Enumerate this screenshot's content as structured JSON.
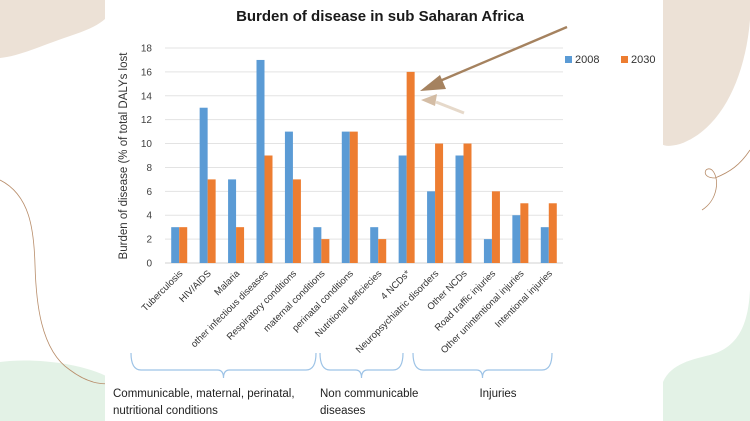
{
  "colors": {
    "series_2008": "#5b9bd5",
    "series_2030": "#ed7d31",
    "gridline": "#e3e3e3",
    "brace": "#9dc3e6",
    "arrow": "#a5825f",
    "bg_beige": "#ece1d6",
    "bg_green": "#e3f2e6",
    "deco_line": "#b88d6a"
  },
  "chart_data": {
    "type": "bar",
    "title": "Burden of disease in sub Saharan Africa",
    "xlabel": "",
    "ylabel": "Burden of disease (% of total DALYs lost",
    "ylim": [
      0,
      18
    ],
    "yticks": [
      0,
      2,
      4,
      6,
      8,
      10,
      12,
      14,
      16,
      18
    ],
    "grid": true,
    "legend_position": "top-right",
    "categories": [
      "Tuberculosis",
      "HIV/AIDS",
      "Malaria",
      "other infectious diseases",
      "Respiratory conditions",
      "maternal conditions",
      "perinatal conditions",
      "Nutritional deficiecies",
      "4 NCDs*",
      "Neuropsychiatric disorders",
      "Other NCDs",
      "Road traffic injuries",
      "Other unintentional injuries",
      "Intentional injuries"
    ],
    "series": [
      {
        "name": "2008",
        "values": [
          3,
          13,
          7,
          17,
          11,
          3,
          11,
          3,
          9,
          6,
          9,
          2,
          4,
          3
        ]
      },
      {
        "name": "2030",
        "values": [
          3,
          7,
          3,
          9,
          7,
          2,
          11,
          2,
          16,
          10,
          10,
          6,
          5,
          5
        ]
      }
    ],
    "groups": [
      {
        "label_lines": [
          "Communicable, maternal, perinatal,",
          "nutritional conditions"
        ],
        "from": 0,
        "to": 7
      },
      {
        "label_lines": [
          "Non communicable",
          "diseases"
        ],
        "from": 8,
        "to": 10
      },
      {
        "label_lines": [
          "Injuries"
        ],
        "from": 11,
        "to": 13
      }
    ],
    "annotations": [
      {
        "type": "arrow",
        "points_to": "4 NCDs* 2030 bar",
        "value": 16
      }
    ]
  }
}
